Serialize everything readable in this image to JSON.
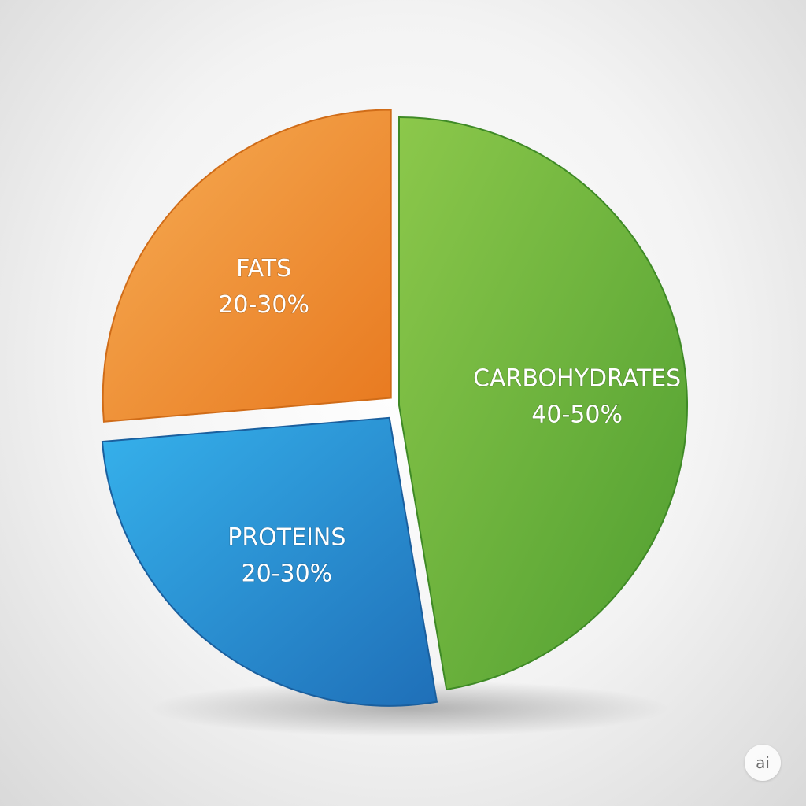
{
  "chart_data": {
    "type": "pie",
    "title": "",
    "slices": [
      {
        "name": "CARBOHYDRATES",
        "label": "40-50%",
        "value": 45,
        "color": "#6ab63c"
      },
      {
        "name": "PROTEINS",
        "label": "20-30%",
        "value": 25,
        "color": "#2a8fd6"
      },
      {
        "name": "FATS",
        "label": "20-30%",
        "value": 25,
        "color": "#f0922e"
      }
    ],
    "legend": "none"
  },
  "watermark": "ai"
}
